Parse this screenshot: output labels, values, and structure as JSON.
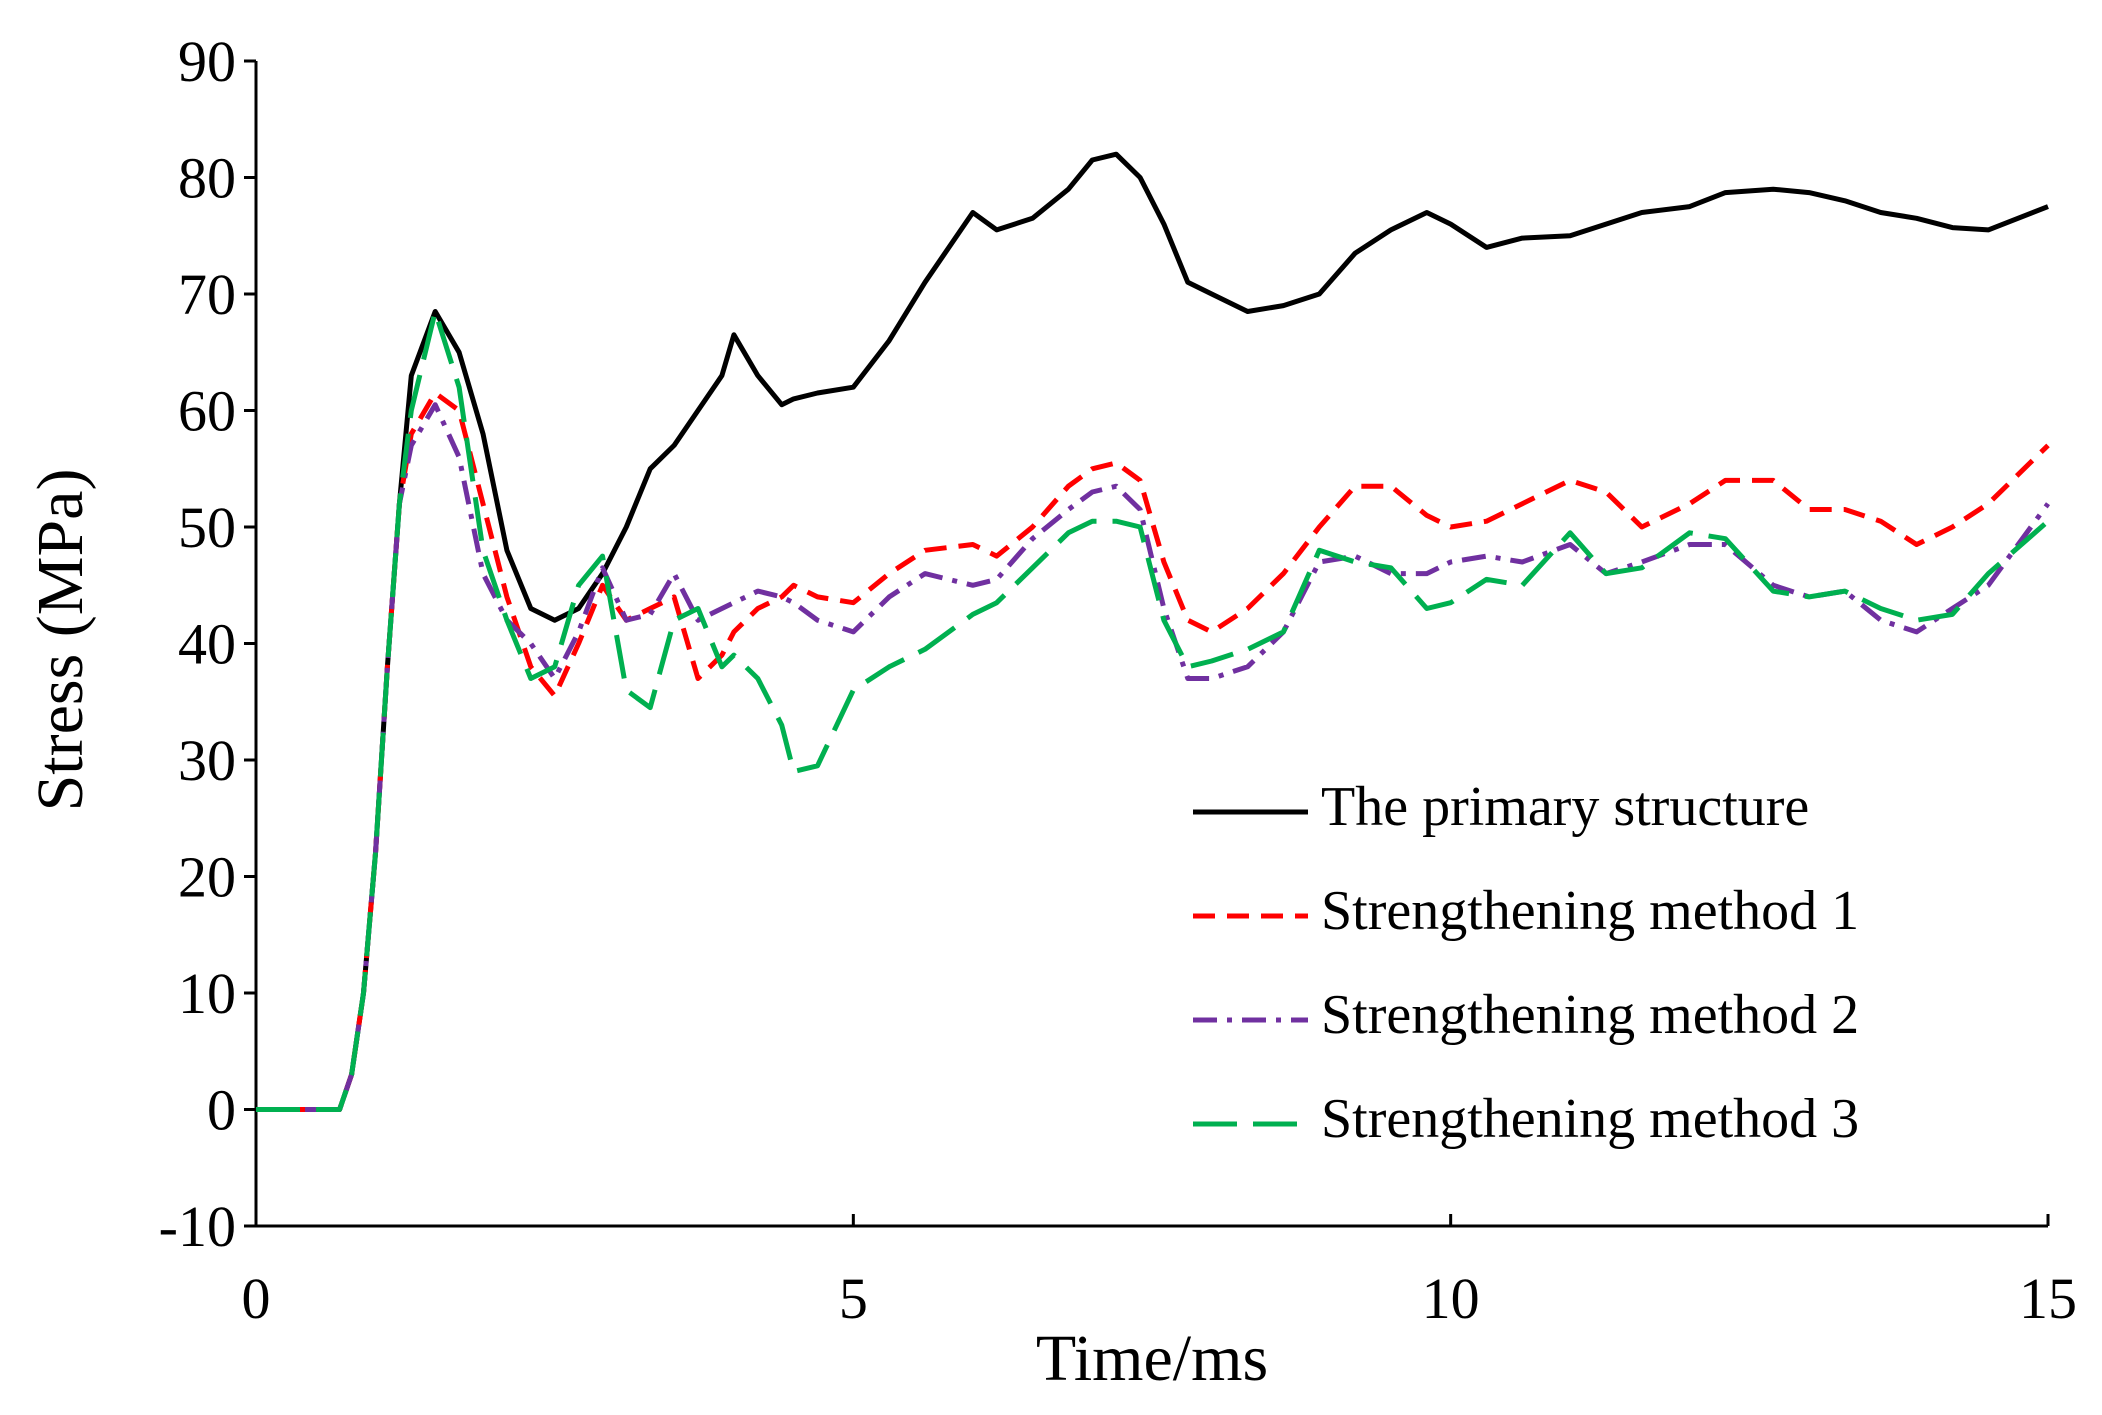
{
  "chart_data": {
    "type": "line",
    "xlabel": "Time/ms",
    "ylabel": "Stress (MPa)",
    "xlim": [
      0,
      15
    ],
    "ylim": [
      -10,
      90
    ],
    "xticks": [
      0,
      5,
      10,
      15
    ],
    "yticks": [
      -10,
      0,
      10,
      20,
      30,
      40,
      50,
      60,
      70,
      80,
      90
    ],
    "legend": "lower right",
    "x": [
      0,
      0.5,
      0.7,
      0.8,
      0.9,
      1.0,
      1.1,
      1.2,
      1.3,
      1.5,
      1.7,
      1.9,
      2.1,
      2.3,
      2.5,
      2.7,
      2.9,
      3.1,
      3.3,
      3.5,
      3.7,
      3.9,
      4.0,
      4.2,
      4.4,
      4.5,
      4.7,
      5.0,
      5.3,
      5.6,
      6.0,
      6.2,
      6.5,
      6.8,
      7.0,
      7.2,
      7.4,
      7.6,
      7.8,
      8.0,
      8.3,
      8.6,
      8.9,
      9.2,
      9.5,
      9.8,
      10.0,
      10.3,
      10.6,
      11.0,
      11.3,
      11.6,
      12.0,
      12.3,
      12.7,
      13.0,
      13.3,
      13.6,
      13.9,
      14.2,
      14.5,
      15.0
    ],
    "series": [
      {
        "name": "The primary structure",
        "color": "#000000",
        "dash": "solid",
        "values": [
          0,
          0,
          0,
          3,
          10,
          22,
          38,
          52,
          63,
          68.5,
          65,
          58,
          48,
          43,
          42,
          43,
          46,
          50,
          55,
          57,
          60,
          63,
          66.5,
          63,
          60.5,
          61,
          61.5,
          62,
          66,
          71,
          77,
          75.5,
          76.5,
          79,
          81.5,
          82,
          80,
          76,
          71,
          70,
          68.5,
          69,
          70,
          73.5,
          75.5,
          77,
          76,
          74,
          74.8,
          75,
          76,
          77,
          77.5,
          78.7,
          79,
          78.7,
          78,
          77,
          76.5,
          75.7,
          75.5,
          77.5
        ]
      },
      {
        "name": "Strengthening method 1",
        "color": "#ff0000",
        "dash": "short-dash",
        "values": [
          0,
          0,
          0,
          3,
          10,
          22,
          38,
          52,
          58,
          61.5,
          60,
          52,
          44,
          38,
          35.5,
          40,
          45,
          42,
          43,
          44,
          37,
          39,
          41,
          43,
          44,
          45,
          44,
          43.5,
          46,
          48,
          48.5,
          47.5,
          50,
          53.5,
          55,
          55.5,
          54,
          47,
          42,
          41,
          43,
          46,
          50,
          53.5,
          53.5,
          51,
          50,
          50.5,
          52,
          54,
          53,
          50,
          52,
          54,
          54,
          51.5,
          51.5,
          50.5,
          48.5,
          50,
          52,
          57
        ]
      },
      {
        "name": "Strengthening method 2",
        "color": "#7030a0",
        "dash": "dash-dot",
        "values": [
          0,
          0,
          0,
          3,
          10,
          22,
          38,
          52,
          57,
          60.5,
          56,
          46,
          42,
          40,
          37,
          41,
          46.5,
          42,
          42.5,
          46,
          42,
          43,
          43.5,
          44.5,
          44,
          43.5,
          42,
          41,
          44,
          46,
          45,
          45.5,
          49,
          51.5,
          53,
          53.5,
          51.5,
          43,
          37,
          37,
          38,
          41,
          47,
          47.5,
          46,
          46,
          47,
          47.5,
          47,
          48.5,
          46,
          47,
          48.5,
          48.5,
          45,
          44,
          44.5,
          42,
          41,
          43,
          45,
          52
        ]
      },
      {
        "name": "Strengthening method 3",
        "color": "#00b050",
        "dash": "long-dash",
        "values": [
          0,
          0,
          0,
          3,
          10,
          22,
          38,
          52,
          60,
          68.5,
          62,
          48,
          42,
          37,
          38,
          45,
          47.5,
          36,
          34.5,
          42,
          43,
          38,
          39,
          37,
          33,
          29,
          29.5,
          36,
          38,
          39.5,
          42.5,
          43.5,
          46.5,
          49.5,
          50.5,
          50.5,
          50,
          42,
          38,
          38.5,
          39.5,
          41,
          48,
          47,
          46.5,
          43,
          43.5,
          45.5,
          45,
          49.5,
          46,
          46.5,
          49.5,
          49,
          44.5,
          44,
          44.5,
          43,
          42,
          42.5,
          46,
          50.5
        ]
      }
    ]
  }
}
